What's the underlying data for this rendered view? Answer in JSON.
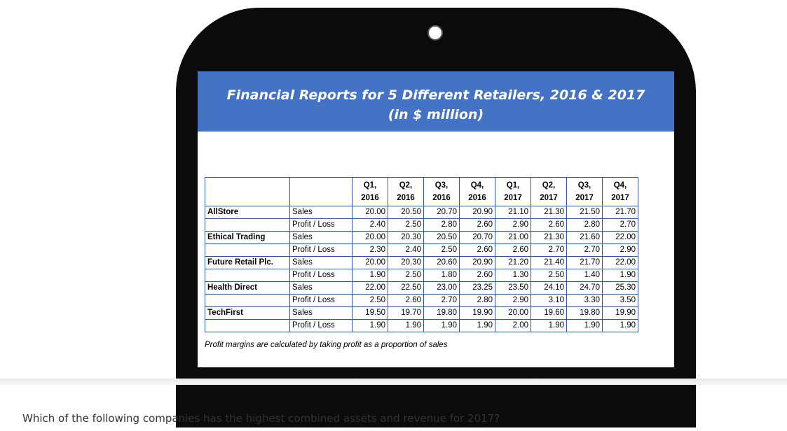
{
  "report": {
    "title_line1": "Financial Reports for 5 Different Retailers, 2016 & 2017",
    "title_line2": "(in $ million)",
    "column_headers": [
      [
        "Q1,",
        "2016"
      ],
      [
        "Q2,",
        "2016"
      ],
      [
        "Q3,",
        "2016"
      ],
      [
        "Q4,",
        "2016"
      ],
      [
        "Q1,",
        "2017"
      ],
      [
        "Q2,",
        "2017"
      ],
      [
        "Q3,",
        "2017"
      ],
      [
        "Q4,",
        "2017"
      ]
    ],
    "rows": [
      {
        "company": "AllStore",
        "metric": "Sales",
        "values": [
          "20.00",
          "20.50",
          "20.70",
          "20.90",
          "21.10",
          "21.30",
          "21.50",
          "21.70"
        ]
      },
      {
        "company": "",
        "metric": "Profit / Loss",
        "values": [
          "2.40",
          "2.50",
          "2.80",
          "2.60",
          "2.90",
          "2.60",
          "2.80",
          "2.70"
        ]
      },
      {
        "company": "Ethical Trading",
        "metric": "Sales",
        "values": [
          "20.00",
          "20.30",
          "20.50",
          "20.70",
          "21.00",
          "21.30",
          "21.60",
          "22.00"
        ]
      },
      {
        "company": "",
        "metric": "Profit / Loss",
        "values": [
          "2.30",
          "2.40",
          "2.50",
          "2.60",
          "2.60",
          "2.70",
          "2.70",
          "2.90"
        ]
      },
      {
        "company": "Future Retail Plc.",
        "metric": "Sales",
        "values": [
          "20.00",
          "20.30",
          "20.60",
          "20.90",
          "21.20",
          "21.40",
          "21.70",
          "22.00"
        ]
      },
      {
        "company": "",
        "metric": "Profit / Loss",
        "values": [
          "1.90",
          "2.50",
          "1.80",
          "2.60",
          "1.30",
          "2.50",
          "1.40",
          "1.90"
        ]
      },
      {
        "company": "Health Direct",
        "metric": "Sales",
        "values": [
          "22.00",
          "22.50",
          "23.00",
          "23.25",
          "23.50",
          "24.10",
          "24.70",
          "25.30"
        ]
      },
      {
        "company": "",
        "metric": "Profit / Loss",
        "values": [
          "2.50",
          "2.60",
          "2.70",
          "2.80",
          "2.90",
          "3.10",
          "3.30",
          "3.50"
        ]
      },
      {
        "company": "TechFirst",
        "metric": "Sales",
        "values": [
          "19.50",
          "19.70",
          "19.80",
          "19.90",
          "20.00",
          "19.60",
          "19.80",
          "19.90"
        ]
      },
      {
        "company": "",
        "metric": "Profit / Loss",
        "values": [
          "1.90",
          "1.90",
          "1.90",
          "1.90",
          "2.00",
          "1.90",
          "1.90",
          "1.90"
        ]
      }
    ],
    "footnote": "Profit margins are calculated by taking profit as a proportion of sales"
  },
  "question": {
    "text": "Which of the following companies has the highest combined assets and revenue for 2017?"
  },
  "colors": {
    "banner": "#4472c4",
    "table_border": "#2f56a8",
    "device": "#0b0b0b"
  }
}
